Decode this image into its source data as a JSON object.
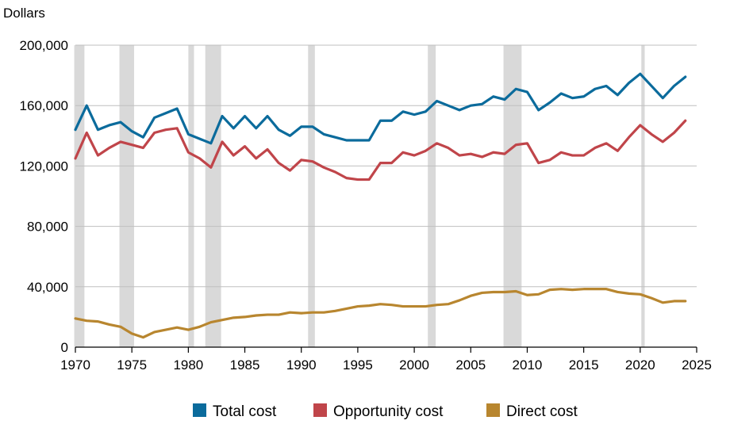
{
  "chart_data": {
    "type": "line",
    "ylabel": "Dollars",
    "ylim": [
      0,
      200000
    ],
    "xlim": [
      1970,
      2025
    ],
    "y_ticks": [
      {
        "value": 0,
        "label": "0"
      },
      {
        "value": 40000,
        "label": "40,000"
      },
      {
        "value": 80000,
        "label": "80,000"
      },
      {
        "value": 120000,
        "label": "120,000"
      },
      {
        "value": 160000,
        "label": "160,000"
      },
      {
        "value": 200000,
        "label": "200,000"
      }
    ],
    "x_ticks": [
      {
        "value": 1970,
        "label": "1970"
      },
      {
        "value": 1975,
        "label": "1975"
      },
      {
        "value": 1980,
        "label": "1980"
      },
      {
        "value": 1985,
        "label": "1985"
      },
      {
        "value": 1990,
        "label": "1990"
      },
      {
        "value": 1995,
        "label": "1995"
      },
      {
        "value": 2000,
        "label": "2000"
      },
      {
        "value": 2005,
        "label": "2005"
      },
      {
        "value": 2010,
        "label": "2010"
      },
      {
        "value": 2015,
        "label": "2015"
      },
      {
        "value": 2020,
        "label": "2020"
      },
      {
        "value": 2025,
        "label": "2025"
      }
    ],
    "grid": true,
    "legend": "bottom",
    "recessions": [
      [
        1969.9,
        1970.8
      ],
      [
        1973.9,
        1975.2
      ],
      [
        1980.0,
        1980.5
      ],
      [
        1981.5,
        1982.9
      ],
      [
        1990.6,
        1991.2
      ],
      [
        2001.2,
        2001.9
      ],
      [
        2007.9,
        2009.5
      ],
      [
        2020.1,
        2020.4
      ]
    ],
    "x": [
      1970,
      1971,
      1972,
      1973,
      1974,
      1975,
      1976,
      1977,
      1978,
      1979,
      1980,
      1981,
      1982,
      1983,
      1984,
      1985,
      1986,
      1987,
      1988,
      1989,
      1990,
      1991,
      1992,
      1993,
      1994,
      1995,
      1996,
      1997,
      1998,
      1999,
      2000,
      2001,
      2002,
      2003,
      2004,
      2005,
      2006,
      2007,
      2008,
      2009,
      2010,
      2011,
      2012,
      2013,
      2014,
      2015,
      2016,
      2017,
      2018,
      2019,
      2020,
      2021,
      2022,
      2023,
      2024
    ],
    "series": [
      {
        "name": "Total cost",
        "color": "#0B6B9C",
        "values": [
          144000,
          160000,
          144000,
          147000,
          149000,
          143000,
          139000,
          152000,
          155000,
          158000,
          141000,
          138000,
          135000,
          153000,
          145000,
          153000,
          145000,
          153000,
          144000,
          140000,
          146000,
          146000,
          141000,
          139000,
          137000,
          137000,
          137000,
          150000,
          150000,
          156000,
          154000,
          156000,
          163000,
          160000,
          157000,
          160000,
          161000,
          166000,
          164000,
          171000,
          169000,
          157000,
          162000,
          168000,
          165000,
          166000,
          171000,
          173000,
          167000,
          175000,
          181000,
          173000,
          165000,
          173000,
          179000
        ]
      },
      {
        "name": "Opportunity cost",
        "color": "#C0454A",
        "values": [
          125000,
          142000,
          127000,
          132000,
          136000,
          134000,
          132000,
          142000,
          144000,
          145000,
          129000,
          125000,
          119000,
          136000,
          127000,
          133000,
          125000,
          131000,
          122000,
          117000,
          124000,
          123000,
          119000,
          116000,
          112000,
          111000,
          111000,
          122000,
          122000,
          129000,
          127000,
          130000,
          135000,
          132000,
          127000,
          128000,
          126000,
          129000,
          128000,
          134000,
          135000,
          122000,
          124000,
          129000,
          127000,
          127000,
          132000,
          135000,
          130000,
          139000,
          147000,
          141000,
          136000,
          142000,
          150000
        ]
      },
      {
        "name": "Direct cost",
        "color": "#B8862F",
        "values": [
          19000,
          17500,
          17000,
          15000,
          13500,
          9000,
          6500,
          10000,
          11500,
          13000,
          11500,
          13500,
          16500,
          18000,
          19500,
          20000,
          21000,
          21500,
          21500,
          23000,
          22500,
          23000,
          23000,
          24000,
          25500,
          27000,
          27500,
          28500,
          28000,
          27000,
          27000,
          27000,
          28000,
          28500,
          31000,
          34000,
          36000,
          36500,
          36500,
          37000,
          34500,
          35000,
          38000,
          38500,
          38000,
          38500,
          38500,
          38500,
          36500,
          35500,
          35000,
          32500,
          29500,
          30500,
          30500
        ]
      }
    ]
  }
}
